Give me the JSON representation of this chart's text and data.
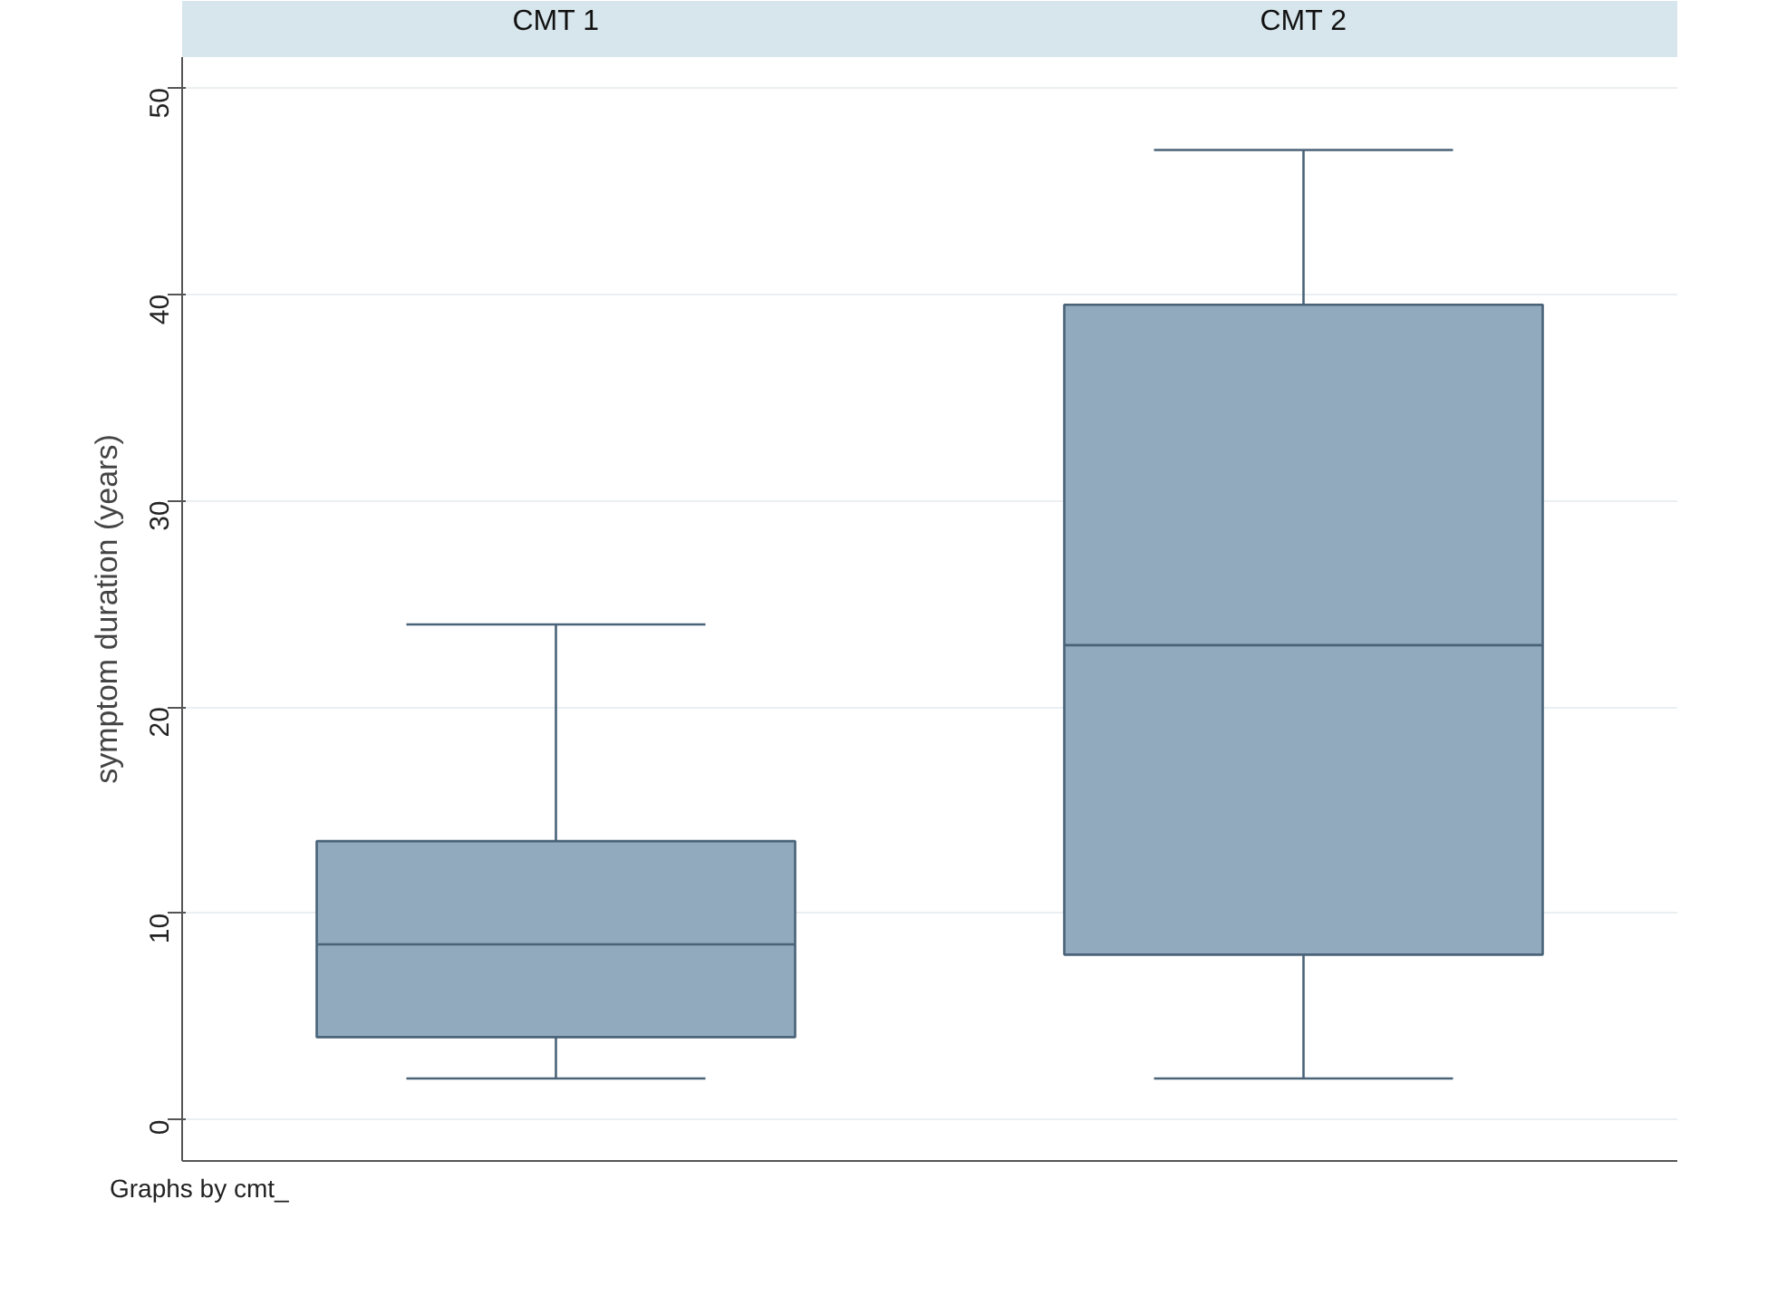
{
  "chart_data": {
    "type": "box",
    "ylabel": "symptom duration (years)",
    "annotations": [
      "Graphs by cmt_"
    ],
    "categories": [
      "CMT 1",
      "CMT 2"
    ],
    "series": [
      {
        "color": "#91aabd",
        "boxes": [
          {
            "low": 2,
            "q1": 4,
            "median": 8.5,
            "q3": 13.5,
            "high": 24
          },
          {
            "low": 2,
            "q1": 8,
            "median": 23,
            "q3": 39.5,
            "high": 47
          }
        ]
      }
    ],
    "ylim": [
      -2,
      51.5
    ],
    "yticks": [
      0,
      10,
      20,
      30,
      40,
      50
    ],
    "grid": "y"
  }
}
